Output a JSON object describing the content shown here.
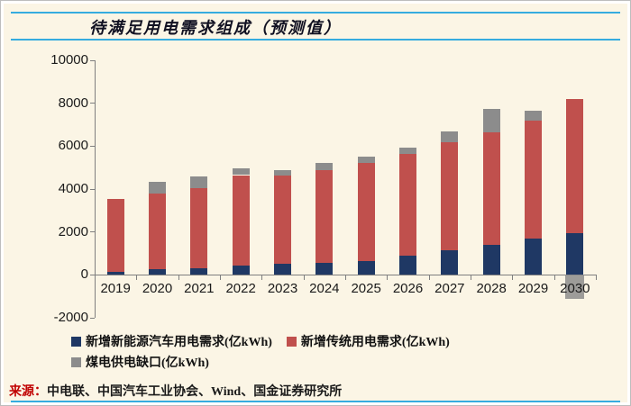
{
  "panel": {
    "title": "待满足用电需求组成（预测值）",
    "source_label": "来源：",
    "source_text": "中电联、中国汽车工业协会、Wind、国金证券研究所",
    "background_color": "#FBF5E5",
    "accent_line_color": "#35ACDF"
  },
  "chart_data": {
    "type": "bar",
    "stacked": true,
    "title": "待满足用电需求组成（预测值）",
    "unit": "亿kWh",
    "categories": [
      "2019",
      "2020",
      "2021",
      "2022",
      "2023",
      "2024",
      "2025",
      "2026",
      "2027",
      "2028",
      "2029",
      "2030"
    ],
    "series": [
      {
        "key": "ev-demand",
        "name": "新增新能源汽车用电需求(亿kWh)",
        "color": "#1F3864",
        "values": [
          150,
          250,
          300,
          450,
          500,
          550,
          650,
          900,
          1150,
          1400,
          1700,
          1950
        ]
      },
      {
        "key": "traditional-demand",
        "name": "新增传统用电需求(亿kWh)",
        "color": "#C0504D",
        "values": [
          3400,
          3550,
          3750,
          4200,
          4150,
          4350,
          4550,
          4750,
          5050,
          5250,
          5500,
          6250
        ]
      },
      {
        "key": "coal-power-gap",
        "name": "煤电供电缺口(亿kWh)",
        "color": "#8C8C8C",
        "values": [
          0,
          550,
          550,
          300,
          250,
          300,
          300,
          300,
          500,
          1100,
          450,
          -1100
        ]
      }
    ],
    "ylim": [
      -2000,
      10000
    ],
    "yticks": [
      10000,
      8000,
      6000,
      4000,
      2000,
      0,
      -2000
    ],
    "xlabel": "",
    "ylabel": "",
    "grid": false,
    "legend_position": "bottom-left"
  }
}
